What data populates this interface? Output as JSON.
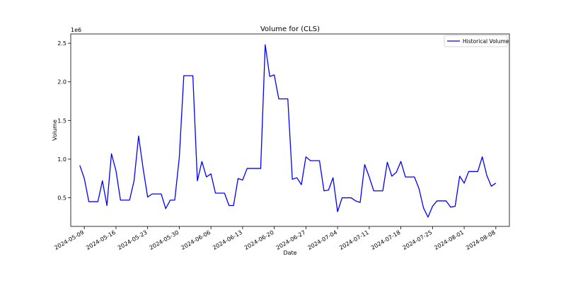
{
  "chart_data": {
    "type": "line",
    "title": "Volume for  (CLS)",
    "xlabel": "Date",
    "ylabel": "Volume",
    "y_offset_label": "1e6",
    "ylim": [
      0.13,
      2.62
    ],
    "xlim": [
      "2024-05-06",
      "2024-08-11"
    ],
    "grid": false,
    "legend": {
      "placement": "top-right",
      "entries": [
        "Historical Volume"
      ]
    },
    "x_ticks": [
      "2024-05-09",
      "2024-05-16",
      "2024-05-23",
      "2024-05-30",
      "2024-06-06",
      "2024-06-13",
      "2024-06-20",
      "2024-06-27",
      "2024-07-04",
      "2024-07-11",
      "2024-07-18",
      "2024-07-25",
      "2024-08-01",
      "2024-08-08"
    ],
    "y_ticks": [
      0.5,
      1.0,
      1.5,
      2.0,
      2.5
    ],
    "y_tick_labels": [
      "0.5",
      "1.0",
      "1.5",
      "2.0",
      "2.5"
    ],
    "series": [
      {
        "name": "Historical Volume",
        "color": "#0000ff",
        "x": [
          "2024-05-08",
          "2024-05-09",
          "2024-05-10",
          "2024-05-11",
          "2024-05-12",
          "2024-05-13",
          "2024-05-14",
          "2024-05-15",
          "2024-05-16",
          "2024-05-17",
          "2024-05-18",
          "2024-05-19",
          "2024-05-20",
          "2024-05-21",
          "2024-05-22",
          "2024-05-23",
          "2024-05-24",
          "2024-05-25",
          "2024-05-26",
          "2024-05-27",
          "2024-05-28",
          "2024-05-29",
          "2024-05-30",
          "2024-05-31",
          "2024-06-01",
          "2024-06-02",
          "2024-06-03",
          "2024-06-04",
          "2024-06-05",
          "2024-06-06",
          "2024-06-07",
          "2024-06-08",
          "2024-06-09",
          "2024-06-10",
          "2024-06-11",
          "2024-06-12",
          "2024-06-13",
          "2024-06-14",
          "2024-06-15",
          "2024-06-16",
          "2024-06-17",
          "2024-06-18",
          "2024-06-19",
          "2024-06-20",
          "2024-06-21",
          "2024-06-22",
          "2024-06-23",
          "2024-06-24",
          "2024-06-25",
          "2024-06-26",
          "2024-06-27",
          "2024-06-28",
          "2024-06-29",
          "2024-06-30",
          "2024-07-01",
          "2024-07-02",
          "2024-07-03",
          "2024-07-04",
          "2024-07-05",
          "2024-07-06",
          "2024-07-07",
          "2024-07-08",
          "2024-07-09",
          "2024-07-10",
          "2024-07-11",
          "2024-07-12",
          "2024-07-13",
          "2024-07-14",
          "2024-07-15",
          "2024-07-16",
          "2024-07-17",
          "2024-07-18",
          "2024-07-19",
          "2024-07-20",
          "2024-07-21",
          "2024-07-22",
          "2024-07-23",
          "2024-07-24",
          "2024-07-25",
          "2024-07-26",
          "2024-07-27",
          "2024-07-28",
          "2024-07-29",
          "2024-07-30",
          "2024-07-31",
          "2024-08-01",
          "2024-08-02",
          "2024-08-03",
          "2024-08-04",
          "2024-08-05",
          "2024-08-06",
          "2024-08-07",
          "2024-08-08"
        ],
        "values": [
          0.92,
          0.75,
          0.45,
          0.45,
          0.45,
          0.72,
          0.4,
          1.07,
          0.85,
          0.47,
          0.47,
          0.47,
          0.72,
          1.3,
          0.88,
          0.51,
          0.55,
          0.55,
          0.55,
          0.36,
          0.47,
          0.47,
          1.02,
          2.08,
          2.08,
          2.08,
          0.72,
          0.97,
          0.77,
          0.81,
          0.56,
          0.56,
          0.56,
          0.4,
          0.4,
          0.75,
          0.73,
          0.88,
          0.88,
          0.88,
          0.88,
          2.48,
          2.07,
          2.09,
          1.78,
          1.78,
          1.78,
          0.74,
          0.76,
          0.67,
          1.03,
          0.98,
          0.98,
          0.98,
          0.59,
          0.6,
          0.76,
          0.32,
          0.5,
          0.5,
          0.5,
          0.46,
          0.44,
          0.93,
          0.77,
          0.59,
          0.59,
          0.59,
          0.96,
          0.78,
          0.83,
          0.97,
          0.77,
          0.77,
          0.77,
          0.62,
          0.37,
          0.25,
          0.39,
          0.46,
          0.46,
          0.46,
          0.38,
          0.39,
          0.78,
          0.69,
          0.84,
          0.84,
          0.84,
          1.03,
          0.79,
          0.65,
          0.69
        ]
      }
    ]
  }
}
